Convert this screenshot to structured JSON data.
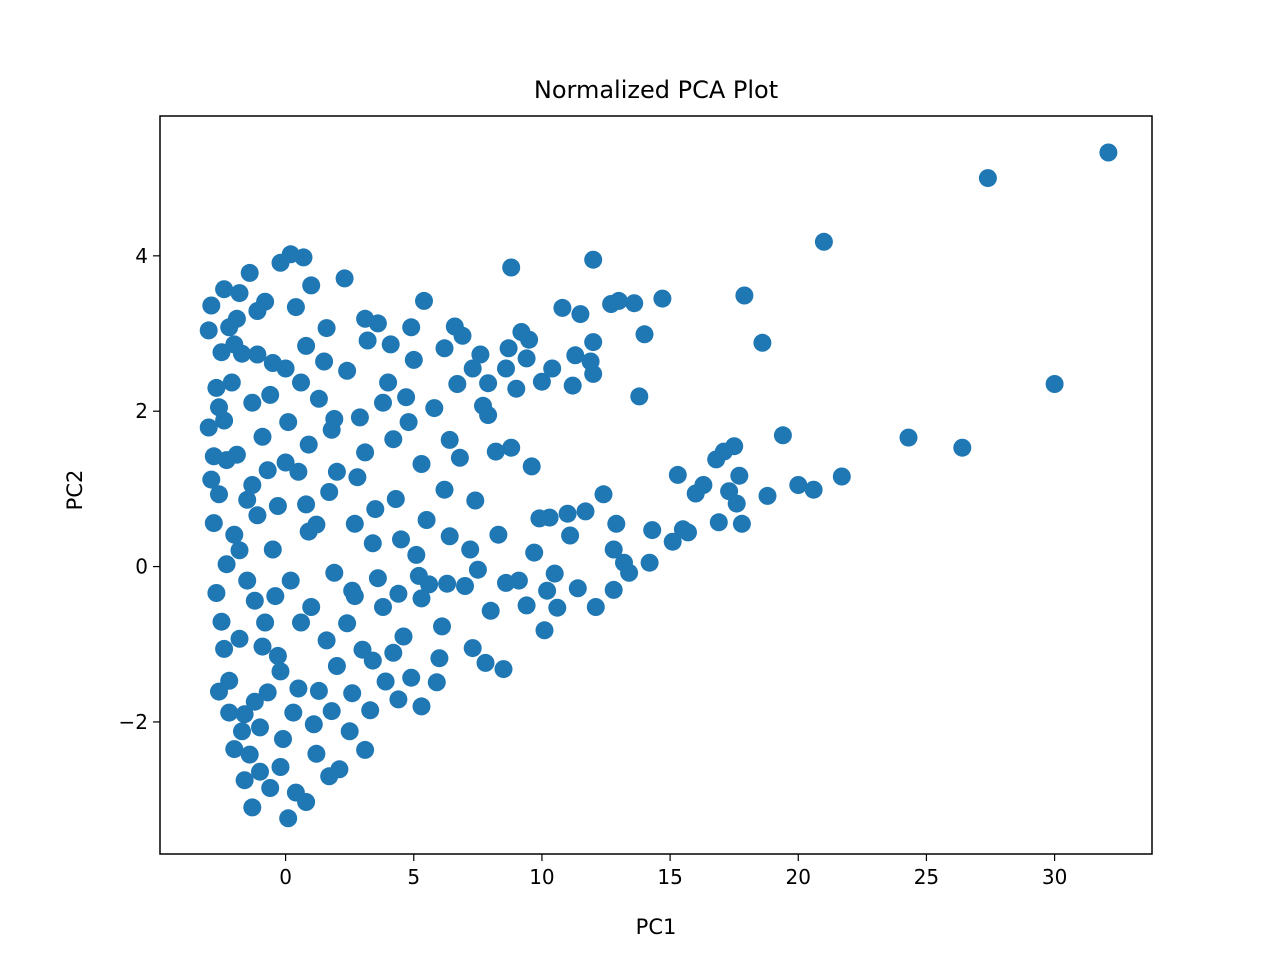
{
  "chart_data": {
    "type": "scatter",
    "title": "Normalized PCA Plot",
    "xlabel": "PC1",
    "ylabel": "PC2",
    "xlim": [
      -4.9,
      33.8
    ],
    "ylim": [
      -3.7,
      5.8
    ],
    "xticks": [
      {
        "value": 0,
        "label": "0"
      },
      {
        "value": 5,
        "label": "5"
      },
      {
        "value": 10,
        "label": "10"
      },
      {
        "value": 15,
        "label": "15"
      },
      {
        "value": 20,
        "label": "20"
      },
      {
        "value": 25,
        "label": "25"
      },
      {
        "value": 30,
        "label": "30"
      }
    ],
    "yticks": [
      {
        "value": -2,
        "label": "−2"
      },
      {
        "value": 0,
        "label": "0"
      },
      {
        "value": 2,
        "label": "2"
      },
      {
        "value": 4,
        "label": "4"
      }
    ],
    "grid": false,
    "legend": "none",
    "marker_color": "#1f77b4",
    "series": [
      {
        "points": [
          [
            32.1,
            5.33
          ],
          [
            27.4,
            5.0
          ],
          [
            21.0,
            4.18
          ],
          [
            30.0,
            2.35
          ],
          [
            26.4,
            1.53
          ],
          [
            24.3,
            1.66
          ],
          [
            21.7,
            1.16
          ],
          [
            20.6,
            0.99
          ],
          [
            20.0,
            1.05
          ],
          [
            19.4,
            1.69
          ],
          [
            18.8,
            0.91
          ],
          [
            18.6,
            2.88
          ],
          [
            17.9,
            3.49
          ],
          [
            17.8,
            0.55
          ],
          [
            17.7,
            1.17
          ],
          [
            17.6,
            0.81
          ],
          [
            17.5,
            1.55
          ],
          [
            17.3,
            0.97
          ],
          [
            17.1,
            1.48
          ],
          [
            16.9,
            0.57
          ],
          [
            16.8,
            1.38
          ],
          [
            16.3,
            1.05
          ],
          [
            16.0,
            0.94
          ],
          [
            15.7,
            0.44
          ],
          [
            15.5,
            0.48
          ],
          [
            15.3,
            1.18
          ],
          [
            15.1,
            0.32
          ],
          [
            14.7,
            3.45
          ],
          [
            14.3,
            0.47
          ],
          [
            14.2,
            0.05
          ],
          [
            14.0,
            2.99
          ],
          [
            13.8,
            2.19
          ],
          [
            13.6,
            3.39
          ],
          [
            13.2,
            0.05
          ],
          [
            13.0,
            3.42
          ],
          [
            12.9,
            0.55
          ],
          [
            12.8,
            -0.3
          ],
          [
            12.7,
            3.38
          ],
          [
            12.4,
            0.93
          ],
          [
            12.0,
            2.89
          ],
          [
            12.0,
            3.95
          ],
          [
            11.9,
            2.64
          ],
          [
            11.7,
            0.71
          ],
          [
            11.5,
            3.25
          ],
          [
            11.3,
            2.72
          ],
          [
            11.0,
            0.68
          ],
          [
            10.8,
            3.33
          ],
          [
            10.6,
            -0.53
          ],
          [
            10.3,
            0.63
          ],
          [
            10.1,
            -0.82
          ],
          [
            10.0,
            2.38
          ],
          [
            9.9,
            0.62
          ],
          [
            9.6,
            1.29
          ],
          [
            9.4,
            2.68
          ],
          [
            9.2,
            3.02
          ],
          [
            9.0,
            2.29
          ],
          [
            8.8,
            3.85
          ],
          [
            8.8,
            1.53
          ],
          [
            8.7,
            2.81
          ],
          [
            8.5,
            -1.32
          ],
          [
            8.2,
            1.48
          ],
          [
            7.9,
            2.36
          ],
          [
            7.8,
            -1.24
          ],
          [
            7.6,
            2.73
          ],
          [
            7.4,
            0.85
          ],
          [
            7.3,
            -1.05
          ],
          [
            6.9,
            2.97
          ],
          [
            6.8,
            1.4
          ],
          [
            6.6,
            3.09
          ],
          [
            6.4,
            0.39
          ],
          [
            6.2,
            0.99
          ],
          [
            5.9,
            -1.49
          ],
          [
            5.6,
            -0.23
          ],
          [
            5.4,
            3.42
          ],
          [
            5.3,
            -1.8
          ],
          [
            5.1,
            0.15
          ],
          [
            4.9,
            3.08
          ],
          [
            4.7,
            2.18
          ],
          [
            4.4,
            -1.71
          ],
          [
            4.3,
            0.87
          ],
          [
            4.1,
            2.86
          ],
          [
            3.9,
            -1.48
          ],
          [
            3.6,
            3.13
          ],
          [
            3.4,
            0.3
          ],
          [
            3.1,
            3.19
          ],
          [
            3.1,
            -2.36
          ],
          [
            2.8,
            1.15
          ],
          [
            2.6,
            -0.31
          ],
          [
            2.3,
            3.71
          ],
          [
            2.1,
            -2.61
          ],
          [
            1.9,
            1.9
          ],
          [
            1.6,
            -0.95
          ],
          [
            1.5,
            2.64
          ],
          [
            1.2,
            -2.41
          ],
          [
            1.0,
            3.62
          ],
          [
            0.9,
            0.45
          ],
          [
            0.8,
            -3.03
          ],
          [
            0.7,
            3.98
          ],
          [
            0.5,
            1.22
          ],
          [
            0.3,
            -1.88
          ],
          [
            0.2,
            4.02
          ],
          [
            0.0,
            2.55
          ],
          [
            0.1,
            -3.24
          ],
          [
            -0.2,
            3.91
          ],
          [
            -0.3,
            -1.15
          ],
          [
            -0.5,
            0.22
          ],
          [
            -0.6,
            -2.85
          ],
          [
            -0.8,
            3.41
          ],
          [
            -0.9,
            1.67
          ],
          [
            -1.0,
            -2.64
          ],
          [
            -1.1,
            3.29
          ],
          [
            -1.2,
            -0.44
          ],
          [
            -1.3,
            2.11
          ],
          [
            -1.3,
            -3.1
          ],
          [
            -1.4,
            3.78
          ],
          [
            -1.5,
            0.86
          ],
          [
            -1.6,
            -1.9
          ],
          [
            -1.7,
            2.74
          ],
          [
            -1.8,
            -0.93
          ],
          [
            -1.8,
            3.52
          ],
          [
            -1.9,
            1.44
          ],
          [
            -2.0,
            -2.35
          ],
          [
            -2.0,
            0.41
          ],
          [
            -2.1,
            2.37
          ],
          [
            -2.2,
            -1.47
          ],
          [
            -2.2,
            3.08
          ],
          [
            -2.3,
            0.03
          ],
          [
            -2.4,
            1.88
          ],
          [
            -2.4,
            -1.06
          ],
          [
            -2.5,
            2.76
          ],
          [
            -2.6,
            -1.61
          ],
          [
            -2.6,
            0.93
          ],
          [
            -2.7,
            2.3
          ],
          [
            -2.7,
            -0.34
          ],
          [
            -2.8,
            1.42
          ],
          [
            -2.9,
            3.36
          ],
          [
            -3.0,
            1.79
          ],
          [
            -3.0,
            3.04
          ],
          [
            -1.6,
            -2.75
          ],
          [
            -1.4,
            -2.42
          ],
          [
            -1.2,
            -1.74
          ],
          [
            -0.9,
            -1.03
          ],
          [
            -0.4,
            -0.38
          ],
          [
            0.6,
            -0.72
          ],
          [
            1.3,
            -1.6
          ],
          [
            2.0,
            -1.28
          ],
          [
            2.4,
            -0.73
          ],
          [
            3.0,
            -1.07
          ],
          [
            3.8,
            -0.52
          ],
          [
            4.6,
            -0.9
          ],
          [
            5.3,
            -0.41
          ],
          [
            6.1,
            -0.77
          ],
          [
            7.0,
            -0.25
          ],
          [
            8.0,
            -0.57
          ],
          [
            9.1,
            -0.18
          ],
          [
            10.5,
            -0.09
          ],
          [
            11.4,
            -0.28
          ],
          [
            12.1,
            -0.52
          ],
          [
            6.0,
            -1.18
          ],
          [
            4.9,
            -1.43
          ],
          [
            3.3,
            -1.85
          ],
          [
            2.5,
            -2.12
          ],
          [
            1.7,
            -2.7
          ],
          [
            -0.1,
            -2.22
          ],
          [
            -0.7,
            -1.62
          ],
          [
            0.8,
            0.8
          ],
          [
            1.7,
            0.96
          ],
          [
            2.7,
            0.55
          ],
          [
            3.5,
            0.74
          ],
          [
            4.5,
            0.35
          ],
          [
            5.5,
            0.6
          ],
          [
            7.2,
            0.22
          ],
          [
            8.3,
            0.41
          ],
          [
            9.7,
            0.18
          ],
          [
            11.1,
            0.4
          ],
          [
            12.8,
            0.22
          ],
          [
            13.4,
            -0.08
          ],
          [
            9.4,
            -0.5
          ],
          [
            10.2,
            -0.31
          ],
          [
            0.9,
            1.57
          ],
          [
            1.8,
            1.76
          ],
          [
            2.9,
            1.92
          ],
          [
            3.8,
            2.11
          ],
          [
            4.8,
            1.86
          ],
          [
            5.8,
            2.04
          ],
          [
            6.7,
            2.35
          ],
          [
            7.7,
            2.07
          ],
          [
            8.6,
            2.55
          ],
          [
            9.5,
            2.92
          ],
          [
            10.4,
            2.55
          ],
          [
            11.2,
            2.33
          ],
          [
            12.0,
            2.48
          ],
          [
            0.8,
            2.84
          ],
          [
            1.6,
            3.07
          ],
          [
            2.4,
            2.52
          ],
          [
            3.2,
            2.91
          ],
          [
            4.0,
            2.37
          ],
          [
            5.0,
            2.66
          ],
          [
            6.2,
            2.81
          ],
          [
            7.3,
            2.55
          ],
          [
            7.9,
            1.95
          ],
          [
            6.4,
            1.63
          ],
          [
            5.3,
            1.32
          ],
          [
            4.2,
            1.64
          ],
          [
            3.1,
            1.47
          ],
          [
            2.0,
            1.22
          ],
          [
            1.2,
            0.54
          ],
          [
            0.0,
            1.34
          ],
          [
            0.4,
            3.34
          ],
          [
            -0.5,
            2.62
          ],
          [
            -0.3,
            0.78
          ],
          [
            0.2,
            -0.18
          ],
          [
            1.0,
            -0.52
          ],
          [
            1.9,
            -0.08
          ],
          [
            2.7,
            -0.38
          ],
          [
            3.6,
            -0.15
          ],
          [
            4.4,
            -0.35
          ],
          [
            5.2,
            -0.12
          ],
          [
            6.3,
            -0.22
          ],
          [
            7.5,
            -0.04
          ],
          [
            8.6,
            -0.21
          ],
          [
            -2.4,
            3.57
          ],
          [
            -1.9,
            3.19
          ],
          [
            -1.1,
            2.73
          ],
          [
            -0.6,
            2.21
          ],
          [
            -2.8,
            0.56
          ],
          [
            -2.5,
            -0.71
          ],
          [
            -2.2,
            -1.88
          ],
          [
            -1.7,
            -2.12
          ],
          [
            -1.0,
            -2.07
          ],
          [
            -0.2,
            -2.58
          ],
          [
            0.4,
            -2.91
          ],
          [
            -2.9,
            1.12
          ],
          [
            -2.6,
            2.05
          ],
          [
            -2.3,
            1.37
          ],
          [
            -1.8,
            0.21
          ],
          [
            -1.5,
            -0.18
          ],
          [
            -1.1,
            0.66
          ],
          [
            -0.7,
            1.24
          ],
          [
            0.1,
            1.86
          ],
          [
            0.6,
            2.37
          ],
          [
            1.3,
            2.16
          ],
          [
            -2.0,
            2.86
          ],
          [
            -1.3,
            1.05
          ],
          [
            -0.8,
            -0.72
          ],
          [
            -0.2,
            -1.35
          ],
          [
            0.5,
            -1.57
          ],
          [
            1.1,
            -2.03
          ],
          [
            1.8,
            -1.86
          ],
          [
            2.6,
            -1.63
          ],
          [
            3.4,
            -1.21
          ],
          [
            4.2,
            -1.11
          ]
        ]
      }
    ]
  }
}
